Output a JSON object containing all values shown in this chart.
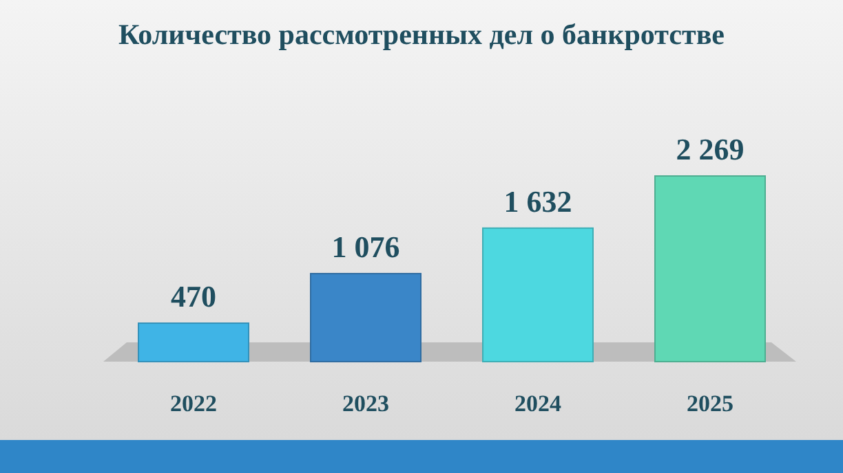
{
  "chart_data": {
    "type": "bar",
    "title": "Количество рассмотренных дел о банкротстве",
    "categories": [
      "2022",
      "2023",
      "2024",
      "2025"
    ],
    "values": [
      470,
      1076,
      1632,
      2269
    ],
    "colors": [
      "#3fb4e6",
      "#3a86c8",
      "#4dd8e0",
      "#5fd8b4"
    ],
    "value_labels": [
      "470",
      "1 076",
      "1 632",
      "2 269"
    ]
  }
}
